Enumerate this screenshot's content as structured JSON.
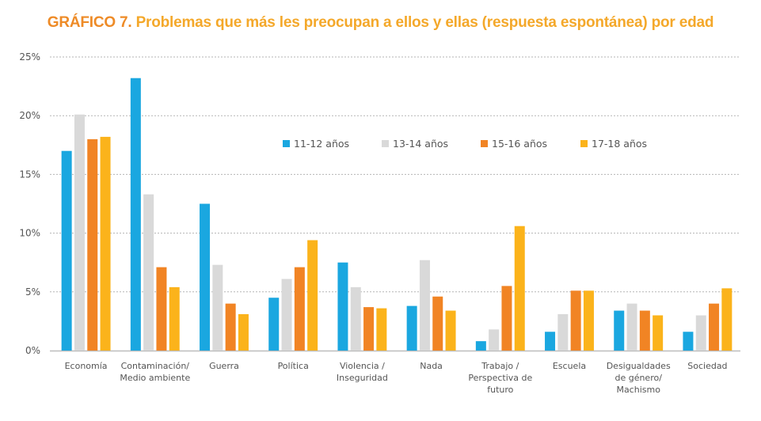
{
  "chart_data": {
    "type": "bar",
    "title_lead": "GRÁFICO 7.",
    "title": "Problemas que más les preocupan a ellos y ellas (respuesta espontánea) por edad",
    "xlabel": "",
    "ylabel": "",
    "ylim": [
      0,
      25
    ],
    "yticks": [
      0,
      5,
      10,
      15,
      20,
      25
    ],
    "ytick_labels": [
      "0%",
      "5%",
      "10%",
      "15%",
      "20%",
      "25%"
    ],
    "grid": true,
    "legend_position": "top-center",
    "categories": [
      [
        "Economía"
      ],
      [
        "Contaminación/",
        "Medio ambiente"
      ],
      [
        "Guerra"
      ],
      [
        "Política"
      ],
      [
        "Violencia /",
        "Inseguridad"
      ],
      [
        "Nada"
      ],
      [
        "Trabajo /",
        "Perspectiva de",
        "futuro"
      ],
      [
        "Escuela"
      ],
      [
        "Desigualdades",
        "de género/",
        "Machismo"
      ],
      [
        "Sociedad"
      ]
    ],
    "series": [
      {
        "name": "11-12 años",
        "color": "#1aa7e0",
        "values": [
          17.0,
          23.2,
          12.5,
          4.5,
          7.5,
          3.8,
          0.8,
          1.6,
          3.4,
          1.6
        ]
      },
      {
        "name": "13-14 años",
        "color": "#d9d9d9",
        "values": [
          20.1,
          13.3,
          7.3,
          6.1,
          5.4,
          7.7,
          1.8,
          3.1,
          4.0,
          3.0
        ]
      },
      {
        "name": "15-16 años",
        "color": "#f18424",
        "values": [
          18.0,
          7.1,
          4.0,
          7.1,
          3.7,
          4.6,
          5.5,
          5.1,
          3.4,
          4.0
        ]
      },
      {
        "name": "17-18 años",
        "color": "#fbb31b",
        "values": [
          18.2,
          5.4,
          3.1,
          9.4,
          3.6,
          3.4,
          10.6,
          5.1,
          3.0,
          5.3
        ]
      }
    ]
  }
}
